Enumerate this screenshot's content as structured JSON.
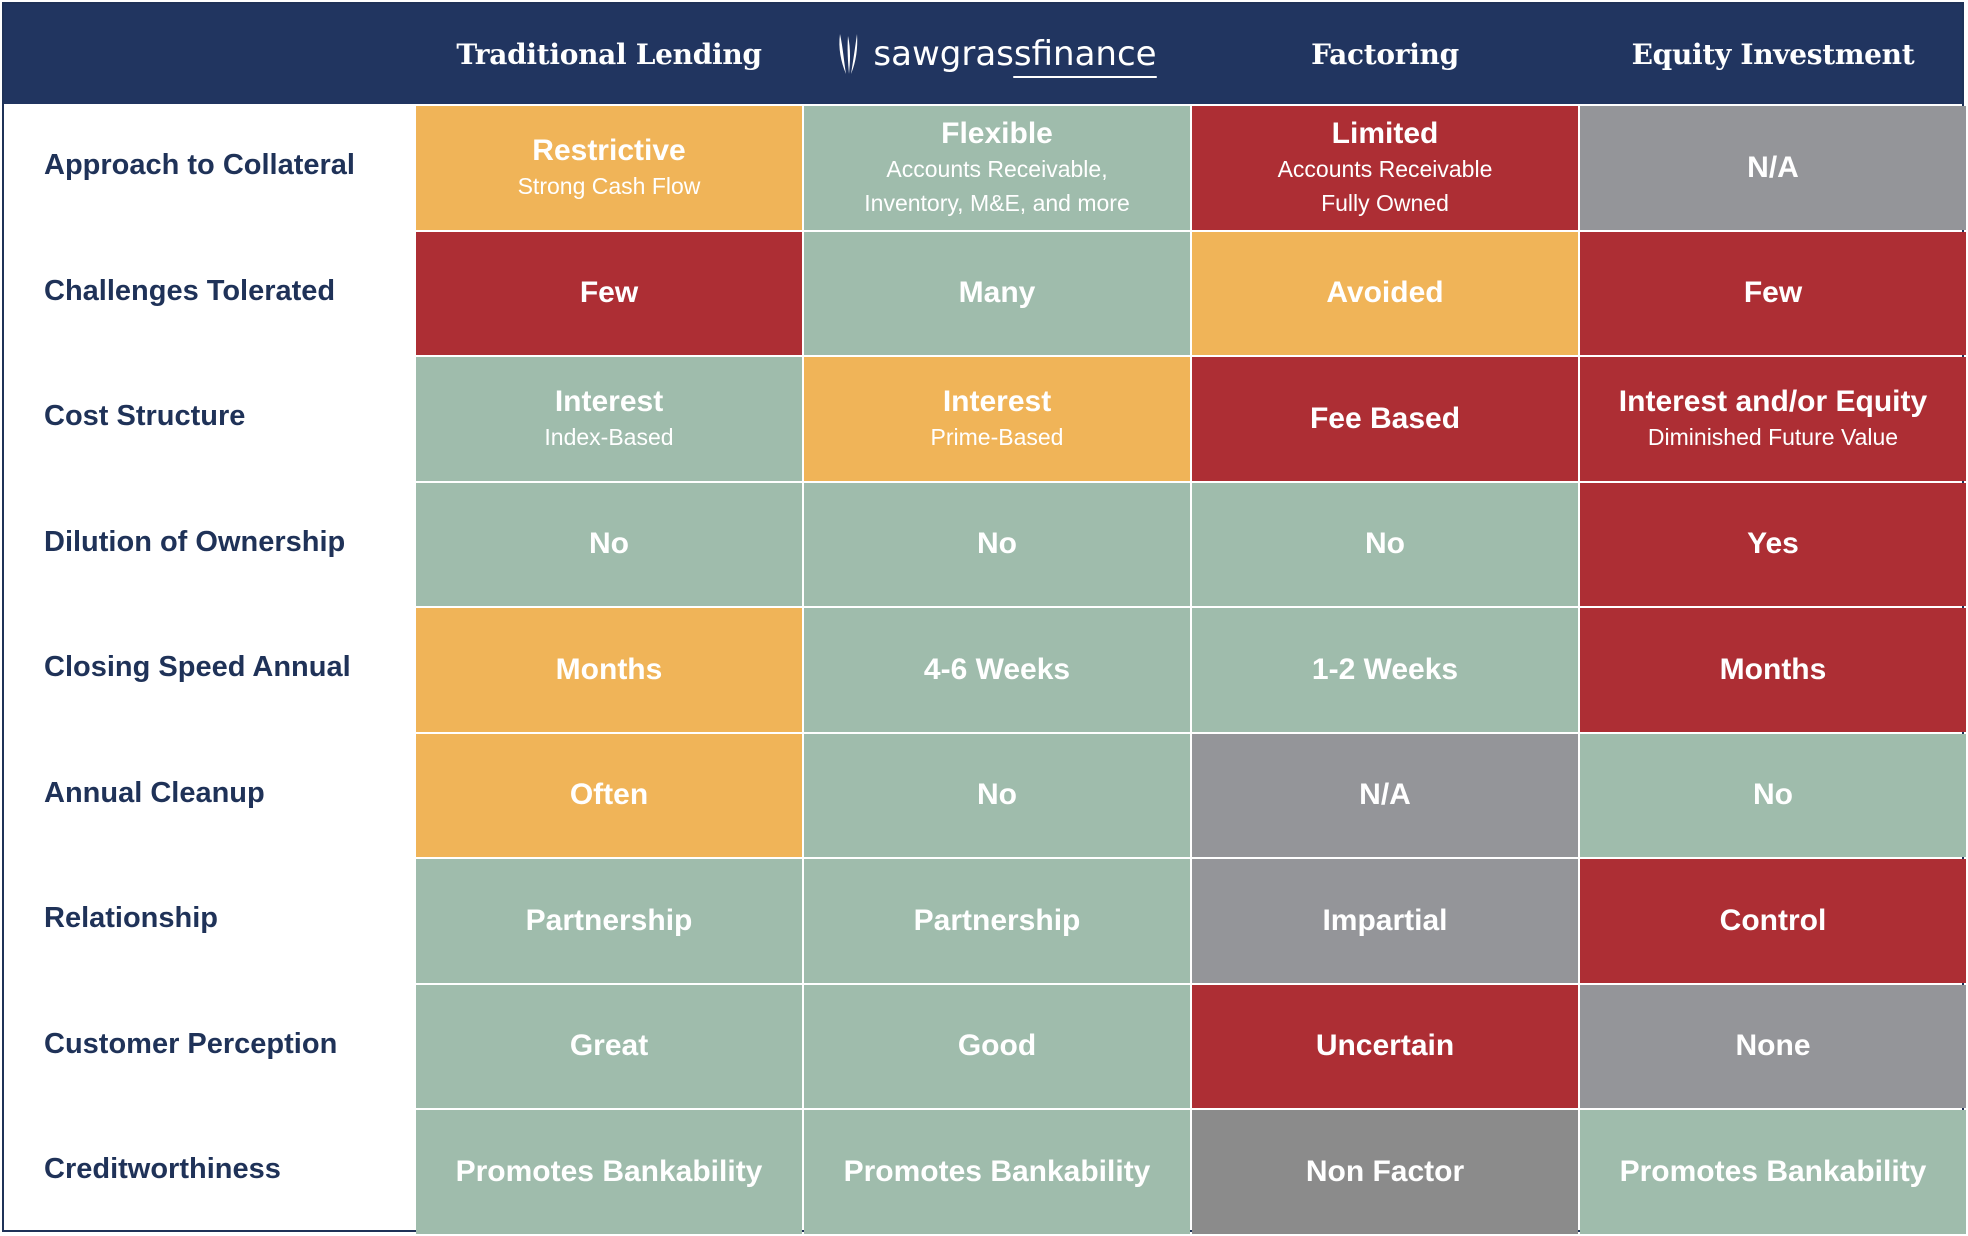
{
  "header": {
    "columns": [
      "Traditional Lending",
      "sawgrass",
      "Factoring",
      "Equity Investment"
    ],
    "logo": {
      "part1": "sawgrass",
      "part2": "finance",
      "icon": "grass-blades-icon"
    }
  },
  "colors": {
    "navy": "#213560",
    "green": "#9fbcac",
    "orange": "#f0b458",
    "red": "#ad2e34",
    "gray": "#949599"
  },
  "rows": [
    {
      "label": "Approach to Collateral",
      "cells": [
        {
          "main": "Restrictive",
          "sub": [
            "Strong Cash Flow"
          ],
          "color": "orange"
        },
        {
          "main": "Flexible",
          "sub": [
            "Accounts Receivable,",
            "Inventory, M&E, and more"
          ],
          "color": "green"
        },
        {
          "main": "Limited",
          "sub": [
            "Accounts Receivable",
            "Fully Owned"
          ],
          "color": "red"
        },
        {
          "main": "N/A",
          "sub": [],
          "color": "gray"
        }
      ]
    },
    {
      "label": "Challenges Tolerated",
      "cells": [
        {
          "main": "Few",
          "sub": [],
          "color": "red"
        },
        {
          "main": "Many",
          "sub": [],
          "color": "green"
        },
        {
          "main": "Avoided",
          "sub": [],
          "color": "orange"
        },
        {
          "main": "Few",
          "sub": [],
          "color": "red"
        }
      ]
    },
    {
      "label": "Cost Structure",
      "cells": [
        {
          "main": "Interest",
          "sub": [
            "Index-Based"
          ],
          "color": "green"
        },
        {
          "main": "Interest",
          "sub": [
            "Prime-Based"
          ],
          "color": "orange"
        },
        {
          "main": "Fee Based",
          "sub": [],
          "color": "red"
        },
        {
          "main": "Interest and/or Equity",
          "sub": [
            "Diminished Future Value"
          ],
          "color": "red"
        }
      ]
    },
    {
      "label": "Dilution of Ownership",
      "cells": [
        {
          "main": "No",
          "sub": [],
          "color": "green"
        },
        {
          "main": "No",
          "sub": [],
          "color": "green"
        },
        {
          "main": "No",
          "sub": [],
          "color": "green"
        },
        {
          "main": "Yes",
          "sub": [],
          "color": "red"
        }
      ]
    },
    {
      "label": "Closing Speed Annual",
      "cells": [
        {
          "main": "Months",
          "sub": [],
          "color": "orange"
        },
        {
          "main": "4-6 Weeks",
          "sub": [],
          "color": "green"
        },
        {
          "main": "1-2 Weeks",
          "sub": [],
          "color": "green"
        },
        {
          "main": "Months",
          "sub": [],
          "color": "red"
        }
      ]
    },
    {
      "label": "Annual Cleanup",
      "cells": [
        {
          "main": "Often",
          "sub": [],
          "color": "orange"
        },
        {
          "main": "No",
          "sub": [],
          "color": "green"
        },
        {
          "main": "N/A",
          "sub": [],
          "color": "gray"
        },
        {
          "main": "No",
          "sub": [],
          "color": "green"
        }
      ]
    },
    {
      "label": "Relationship",
      "cells": [
        {
          "main": "Partnership",
          "sub": [],
          "color": "green"
        },
        {
          "main": "Partnership",
          "sub": [],
          "color": "green"
        },
        {
          "main": "Impartial",
          "sub": [],
          "color": "gray"
        },
        {
          "main": "Control",
          "sub": [],
          "color": "red"
        }
      ]
    },
    {
      "label": "Customer Perception",
      "cells": [
        {
          "main": "Great",
          "sub": [],
          "color": "green"
        },
        {
          "main": "Good",
          "sub": [],
          "color": "green"
        },
        {
          "main": "Uncertain",
          "sub": [],
          "color": "red"
        },
        {
          "main": "None",
          "sub": [],
          "color": "gray"
        }
      ]
    },
    {
      "label": "Creditworthiness",
      "cells": [
        {
          "main": "Promotes Bankability",
          "sub": [],
          "color": "green"
        },
        {
          "main": "Promotes Bankability",
          "sub": [],
          "color": "green"
        },
        {
          "main": "Non Factor",
          "sub": [],
          "color": "darkgray"
        },
        {
          "main": "Promotes Bankability",
          "sub": [],
          "color": "green"
        }
      ]
    }
  ]
}
